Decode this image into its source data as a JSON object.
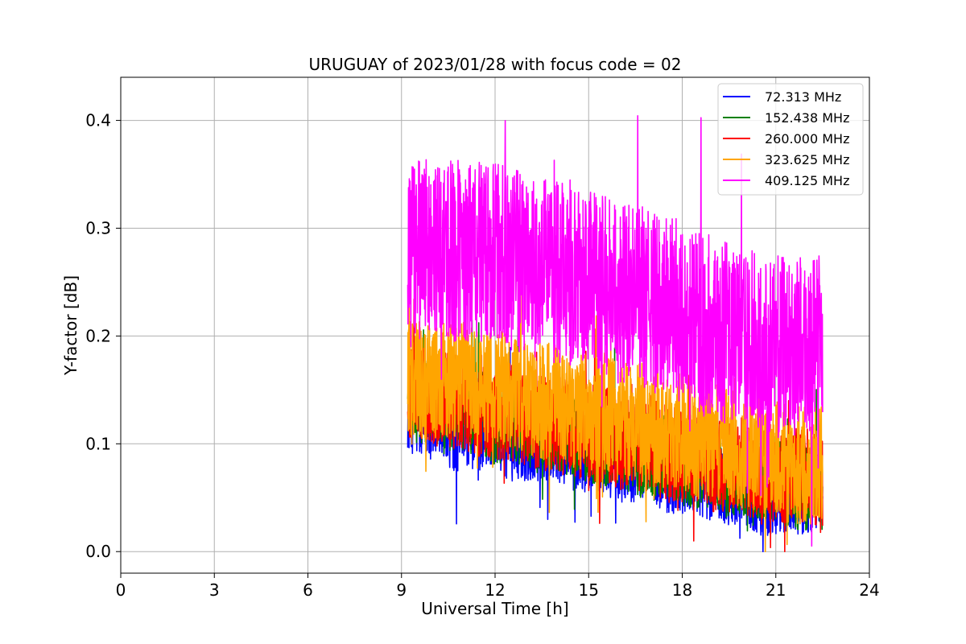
{
  "chart_data": {
    "type": "line",
    "title": "URUGUAY of 2023/01/28 with focus code = 02",
    "xlabel": "Universal Time [h]",
    "ylabel": "Y-factor [dB]",
    "xlim": [
      0,
      24
    ],
    "ylim": [
      -0.02,
      0.44
    ],
    "xticks": [
      0,
      3,
      6,
      9,
      12,
      15,
      18,
      21,
      24
    ],
    "yticks": [
      0.0,
      0.1,
      0.2,
      0.3,
      0.4
    ],
    "ytick_labels": [
      "0.0",
      "0.1",
      "0.2",
      "0.3",
      "0.4"
    ],
    "grid": true,
    "legend_position": "top-right",
    "series": [
      {
        "name": "  72.313 MHz",
        "color": "#0000ff",
        "x": [
          9.2,
          9.5,
          10.0,
          10.5,
          11.0,
          11.5,
          12.0,
          12.5,
          13.0,
          13.5,
          14.0,
          14.5,
          15.0,
          15.5,
          16.0,
          16.5,
          17.0,
          17.5,
          18.0,
          18.5,
          19.0,
          19.5,
          20.0,
          20.5,
          21.0,
          21.5,
          22.0,
          22.5
        ],
        "y": [
          0.13,
          0.12,
          0.12,
          0.11,
          0.11,
          0.11,
          0.11,
          0.1,
          0.1,
          0.1,
          0.1,
          0.09,
          0.09,
          0.09,
          0.08,
          0.08,
          0.08,
          0.07,
          0.07,
          0.07,
          0.06,
          0.06,
          0.06,
          0.05,
          0.05,
          0.05,
          0.05,
          0.05
        ]
      },
      {
        "name": "152.438 MHz",
        "color": "#008000",
        "x": [
          9.2,
          9.5,
          10.0,
          10.5,
          11.0,
          11.5,
          12.0,
          12.5,
          13.0,
          13.5,
          14.0,
          14.5,
          15.0,
          15.5,
          16.0,
          16.5,
          17.0,
          17.5,
          18.0,
          18.5,
          19.0,
          19.5,
          20.0,
          20.5,
          21.0,
          21.5,
          22.0,
          22.5
        ],
        "y": [
          0.15,
          0.14,
          0.14,
          0.13,
          0.13,
          0.13,
          0.12,
          0.12,
          0.12,
          0.11,
          0.11,
          0.11,
          0.1,
          0.1,
          0.1,
          0.09,
          0.09,
          0.09,
          0.08,
          0.08,
          0.08,
          0.07,
          0.07,
          0.07,
          0.07,
          0.06,
          0.06,
          0.06
        ]
      },
      {
        "name": "260.000 MHz",
        "color": "#ff0000",
        "x": [
          9.2,
          9.5,
          10.0,
          10.5,
          11.0,
          11.5,
          12.0,
          12.5,
          13.0,
          13.5,
          14.0,
          14.5,
          15.0,
          15.5,
          16.0,
          16.5,
          17.0,
          17.5,
          18.0,
          18.5,
          19.0,
          19.5,
          20.0,
          20.5,
          21.0,
          21.5,
          22.0,
          22.5
        ],
        "y": [
          0.15,
          0.15,
          0.14,
          0.14,
          0.14,
          0.13,
          0.13,
          0.13,
          0.12,
          0.12,
          0.12,
          0.11,
          0.11,
          0.11,
          0.1,
          0.1,
          0.1,
          0.09,
          0.09,
          0.09,
          0.08,
          0.08,
          0.08,
          0.07,
          0.07,
          0.07,
          0.07,
          0.06
        ]
      },
      {
        "name": "323.625 MHz",
        "color": "#ffa500",
        "x": [
          9.2,
          9.5,
          10.0,
          10.5,
          11.0,
          11.5,
          12.0,
          12.5,
          13.0,
          13.5,
          14.0,
          14.5,
          15.0,
          15.5,
          16.0,
          16.5,
          17.0,
          17.5,
          18.0,
          18.5,
          19.0,
          19.5,
          20.0,
          20.5,
          21.0,
          21.5,
          22.0,
          22.5
        ],
        "y": [
          0.16,
          0.16,
          0.16,
          0.16,
          0.16,
          0.15,
          0.15,
          0.15,
          0.14,
          0.14,
          0.14,
          0.13,
          0.13,
          0.13,
          0.12,
          0.12,
          0.12,
          0.11,
          0.11,
          0.1,
          0.1,
          0.1,
          0.09,
          0.09,
          0.09,
          0.08,
          0.08,
          0.08
        ]
      },
      {
        "name": "409.125 MHz",
        "color": "#ff00ff",
        "x": [
          9.2,
          9.5,
          10.0,
          10.5,
          11.0,
          11.5,
          12.0,
          12.5,
          13.0,
          13.5,
          14.0,
          14.5,
          15.0,
          15.5,
          16.0,
          16.5,
          17.0,
          17.5,
          18.0,
          18.5,
          19.0,
          19.5,
          20.0,
          20.5,
          21.0,
          21.5,
          22.0,
          22.5
        ],
        "y": [
          0.28,
          0.28,
          0.28,
          0.28,
          0.28,
          0.28,
          0.28,
          0.27,
          0.27,
          0.26,
          0.26,
          0.26,
          0.25,
          0.25,
          0.24,
          0.24,
          0.23,
          0.23,
          0.22,
          0.21,
          0.21,
          0.2,
          0.2,
          0.2,
          0.19,
          0.19,
          0.19,
          0.19
        ]
      }
    ]
  }
}
